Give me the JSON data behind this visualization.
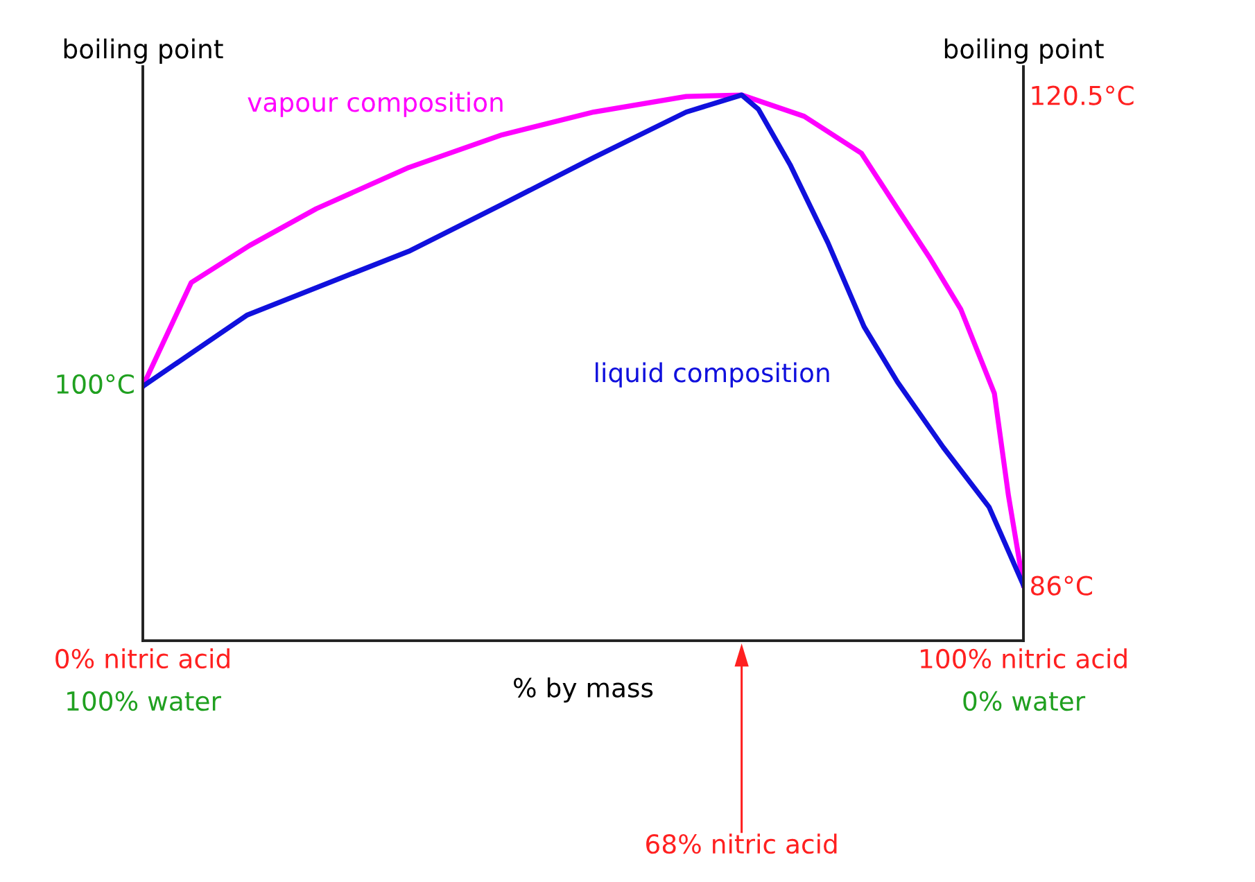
{
  "chart_data": {
    "type": "line",
    "xlabel": "% by mass",
    "ylabel": "boiling point",
    "y2label": "boiling point",
    "xlim": [
      0,
      100
    ],
    "xticks": [
      {
        "value": 0,
        "label": "0% nitric acid"
      },
      {
        "value": 100,
        "label": "100% nitric acid"
      }
    ],
    "y2lim": [
      82.1,
      122.5
    ],
    "y2ticks": [
      {
        "value": 86,
        "label": "86°C"
      },
      {
        "value": 120.5,
        "label": "120.5°C"
      }
    ],
    "legend": false,
    "marker": "none",
    "line_style": "solid",
    "series": [
      {
        "name": "vapour composition",
        "color": "#ff00ff",
        "axis": "y2",
        "x": [
          0,
          5.5,
          12.1,
          19.7,
          30.2,
          40.8,
          51.2,
          61.7,
          68,
          75.1,
          81.6,
          85.7,
          89.3,
          92.9,
          96.7,
          98.3,
          100
        ],
        "values": [
          100,
          107.3,
          109.9,
          112.5,
          115.4,
          117.7,
          119.3,
          120.4,
          120.5,
          119.0,
          116.4,
          112.5,
          109.1,
          105.4,
          99.5,
          92.3,
          86
        ]
      },
      {
        "name": "liquid composition",
        "color": "#1010dd",
        "axis": "y2",
        "x": [
          0,
          11.8,
          22.4,
          30.2,
          40.8,
          51.2,
          61.7,
          68,
          69.9,
          73.5,
          77.8,
          81.9,
          85.7,
          90.9,
          96.1,
          100
        ],
        "values": [
          100,
          105.0,
          107.6,
          109.5,
          112.8,
          116.1,
          119.3,
          120.5,
          119.5,
          115.6,
          110.1,
          104.2,
          100.3,
          95.7,
          91.5,
          86
        ]
      }
    ],
    "annotations": [
      "100°C",
      "100% water",
      "0% water",
      "68% nitric acid"
    ]
  }
}
